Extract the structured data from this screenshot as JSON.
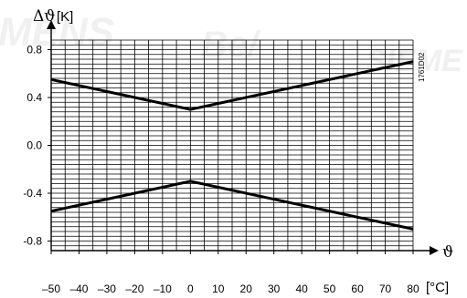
{
  "watermark": {
    "left": "MENS",
    "mid": "Be/",
    "right": "SIEME"
  },
  "chart_data": {
    "type": "line",
    "y_symbol": "Δϑ",
    "y_unit": "[K]",
    "x_symbol": "ϑ",
    "x_unit": "[°C]",
    "figure_code": "1761D02",
    "xlim": [
      -50,
      80
    ],
    "ylim": [
      -0.88,
      0.88
    ],
    "x_ticks": [
      -50,
      -40,
      -30,
      -20,
      -10,
      0,
      10,
      20,
      30,
      40,
      50,
      60,
      70,
      80
    ],
    "x_tick_labels": [
      "–50",
      "–40",
      "–30",
      "–20",
      "–10",
      "0",
      "10",
      "20",
      "30",
      "40",
      "50",
      "60",
      "70",
      "80"
    ],
    "y_ticks": [
      0.8,
      0.4,
      0.0,
      -0.4,
      -0.8
    ],
    "y_tick_labels": [
      "0.8",
      "0.4",
      "0.0",
      "-0.4",
      "-0.8"
    ],
    "grid": true,
    "series": [
      {
        "x": [
          -50,
          0,
          80
        ],
        "y": [
          0.55,
          0.3,
          0.7
        ]
      },
      {
        "x": [
          -50,
          0,
          80
        ],
        "y": [
          -0.55,
          -0.3,
          -0.7
        ]
      }
    ]
  }
}
